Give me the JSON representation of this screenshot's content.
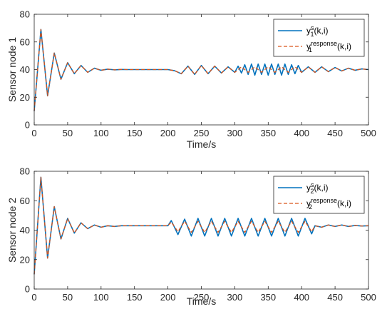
{
  "chart_data": [
    {
      "type": "line",
      "xlabel": "Time/s",
      "ylabel": "Sensor node 1",
      "xlim": [
        0,
        500
      ],
      "ylim": [
        0,
        80
      ],
      "xticks": [
        0,
        50,
        100,
        150,
        200,
        250,
        300,
        350,
        400,
        450,
        500
      ],
      "yticks": [
        0,
        20,
        40,
        60,
        80
      ],
      "grid": false,
      "legend_position": "top-right",
      "legend": [
        {
          "base": "y",
          "sub": "1",
          "sup": "s",
          "tail": "(k,i)",
          "style": "solid",
          "color": "#0072BD"
        },
        {
          "base": "y",
          "sub": "1",
          "sup": "response",
          "tail": "(k,i)",
          "style": "dashed",
          "color": "#D95319"
        }
      ],
      "series": [
        {
          "style": "solid",
          "color": "#0072BD",
          "x": [
            0,
            10,
            20,
            30,
            40,
            50,
            60,
            70,
            80,
            90,
            100,
            110,
            120,
            130,
            140,
            150,
            160,
            170,
            180,
            190,
            200,
            210,
            220,
            230,
            240,
            250,
            260,
            270,
            280,
            290,
            300,
            305,
            310,
            315,
            320,
            325,
            330,
            335,
            340,
            345,
            350,
            355,
            360,
            365,
            370,
            375,
            380,
            385,
            390,
            395,
            400,
            410,
            420,
            430,
            440,
            450,
            460,
            470,
            480,
            490,
            500
          ],
          "y": [
            10,
            69,
            21,
            52,
            33,
            45,
            37,
            43,
            38,
            41,
            39.5,
            40.3,
            39.8,
            40.1,
            40,
            40,
            40,
            40,
            40,
            40,
            40,
            39.2,
            37,
            42.5,
            36.5,
            43,
            37,
            42.5,
            37.5,
            42,
            38,
            42.5,
            37.5,
            43.5,
            36.5,
            44,
            36,
            44,
            36.5,
            44,
            36,
            44,
            36.5,
            44,
            36,
            44,
            36.5,
            43.5,
            37,
            43,
            38,
            42,
            38,
            42,
            38.5,
            41.5,
            39,
            41,
            39.5,
            40.5,
            40
          ]
        },
        {
          "style": "dashed",
          "color": "#D95319",
          "x": [
            0,
            10,
            20,
            30,
            40,
            50,
            60,
            70,
            80,
            90,
            100,
            110,
            120,
            130,
            140,
            150,
            160,
            170,
            180,
            190,
            200,
            210,
            220,
            230,
            240,
            250,
            260,
            270,
            280,
            290,
            300,
            310,
            320,
            330,
            340,
            350,
            360,
            370,
            380,
            390,
            400,
            410,
            420,
            430,
            440,
            450,
            460,
            470,
            480,
            490,
            500
          ],
          "y": [
            10,
            69,
            21,
            52,
            33,
            45,
            37,
            43,
            38,
            41,
            39.5,
            40.3,
            39.8,
            40.1,
            40,
            40,
            40,
            40,
            40,
            40,
            40,
            39.2,
            37,
            42.5,
            36.5,
            43,
            37,
            42.5,
            37.5,
            42,
            38,
            42,
            38,
            42,
            38,
            42,
            38,
            42,
            38,
            42,
            38,
            42,
            38,
            42,
            38.5,
            41.5,
            39,
            41,
            39.5,
            40.5,
            40
          ]
        }
      ]
    },
    {
      "type": "line",
      "xlabel": "Time/s",
      "ylabel": "Sensor node 2",
      "xlim": [
        0,
        500
      ],
      "ylim": [
        0,
        80
      ],
      "xticks": [
        0,
        50,
        100,
        150,
        200,
        250,
        300,
        350,
        400,
        450,
        500
      ],
      "yticks": [
        0,
        20,
        40,
        60,
        80
      ],
      "grid": false,
      "legend_position": "top-right",
      "legend": [
        {
          "base": "y",
          "sub": "2",
          "sup": "s",
          "tail": "(k,i)",
          "style": "solid",
          "color": "#0072BD"
        },
        {
          "base": "y",
          "sub": "2",
          "sup": "response",
          "tail": "(k,i)",
          "style": "dashed",
          "color": "#D95319"
        }
      ],
      "series": [
        {
          "style": "solid",
          "color": "#0072BD",
          "x": [
            0,
            10,
            20,
            30,
            40,
            50,
            60,
            70,
            80,
            90,
            100,
            110,
            120,
            130,
            140,
            150,
            160,
            170,
            180,
            190,
            200,
            205,
            215,
            225,
            235,
            245,
            255,
            265,
            275,
            285,
            295,
            305,
            315,
            325,
            335,
            345,
            355,
            365,
            375,
            385,
            395,
            405,
            415,
            420,
            430,
            440,
            450,
            460,
            470,
            480,
            490,
            500
          ],
          "y": [
            10,
            76,
            21,
            56,
            34,
            48,
            38,
            45,
            41,
            43.5,
            42,
            43,
            42.5,
            43,
            43,
            43,
            43,
            43,
            43,
            43,
            43,
            46.5,
            37,
            47.5,
            36,
            48,
            36,
            48,
            36,
            48,
            36,
            48,
            36,
            48,
            36,
            48,
            36,
            48,
            36,
            48,
            36,
            48,
            37.5,
            43,
            42,
            43.5,
            42.5,
            43.5,
            42.5,
            43.2,
            42.8,
            43
          ]
        },
        {
          "style": "dashed",
          "color": "#D95319",
          "x": [
            0,
            10,
            20,
            30,
            40,
            50,
            60,
            70,
            80,
            90,
            100,
            110,
            120,
            130,
            140,
            150,
            160,
            170,
            180,
            190,
            200,
            205,
            215,
            225,
            235,
            245,
            255,
            265,
            275,
            285,
            295,
            305,
            315,
            325,
            335,
            345,
            355,
            365,
            375,
            385,
            395,
            405,
            415,
            420,
            430,
            440,
            450,
            460,
            470,
            480,
            490,
            500
          ],
          "y": [
            10,
            76,
            21,
            56,
            34,
            48,
            38,
            45,
            41,
            43.5,
            42,
            43,
            42.5,
            43,
            43,
            43,
            43,
            43,
            43,
            43,
            43,
            45.5,
            39,
            46,
            38.5,
            46,
            38.5,
            46,
            38.5,
            46,
            38.5,
            46,
            38.5,
            46,
            38.5,
            46,
            38.5,
            46,
            38.5,
            46,
            38.5,
            46,
            39,
            43,
            42,
            43.5,
            42.5,
            43.5,
            42.5,
            43.2,
            42.8,
            43
          ]
        }
      ]
    }
  ]
}
